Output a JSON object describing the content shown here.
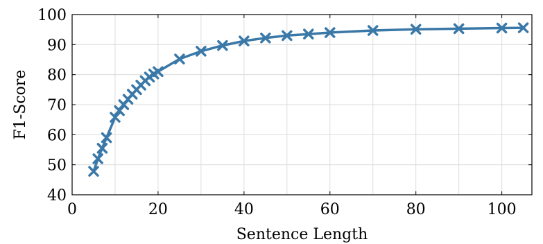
{
  "chart_data": {
    "type": "line",
    "title": "",
    "xlabel": "Sentence Length",
    "ylabel": "F1-Score",
    "xlim": [
      0,
      107
    ],
    "ylim": [
      40,
      100
    ],
    "x_ticks": [
      0,
      20,
      40,
      60,
      80,
      100
    ],
    "y_ticks": [
      40,
      50,
      60,
      70,
      80,
      90,
      100
    ],
    "grid": true,
    "legend": "none",
    "series": [
      {
        "color": "#3a78a8",
        "marker": "x",
        "points": [
          [
            5,
            47.8
          ],
          [
            6,
            52
          ],
          [
            7,
            55.5
          ],
          [
            8,
            59
          ],
          [
            10,
            65.8
          ],
          [
            11,
            68
          ],
          [
            12,
            70
          ],
          [
            13,
            71.8
          ],
          [
            14,
            73.5
          ],
          [
            15,
            75
          ],
          [
            16,
            76.5
          ],
          [
            17,
            78
          ],
          [
            18,
            79.2
          ],
          [
            19,
            80.2
          ],
          [
            20,
            81
          ],
          [
            25,
            85.2
          ],
          [
            30,
            87.8
          ],
          [
            35,
            89.7
          ],
          [
            40,
            91.2
          ],
          [
            45,
            92.2
          ],
          [
            50,
            93
          ],
          [
            55,
            93.5
          ],
          [
            60,
            94
          ],
          [
            70,
            94.7
          ],
          [
            80,
            95.1
          ],
          [
            90,
            95.3
          ],
          [
            100,
            95.5
          ],
          [
            105,
            95.6
          ]
        ]
      }
    ]
  }
}
